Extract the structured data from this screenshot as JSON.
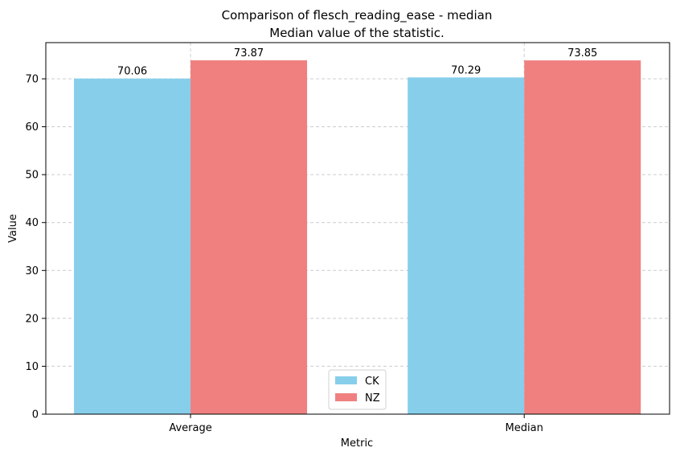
{
  "chart_data": {
    "type": "bar",
    "title": "Comparison of flesch_reading_ease - median",
    "subtitle": "Median value of the statistic.",
    "xlabel": "Metric",
    "ylabel": "Value",
    "categories": [
      "Average",
      "Median"
    ],
    "series": [
      {
        "name": "CK",
        "values": [
          70.06,
          70.29
        ],
        "labels": [
          "70.06",
          "70.29"
        ],
        "color": "#87ceeb"
      },
      {
        "name": "NZ",
        "values": [
          73.87,
          73.85
        ],
        "labels": [
          "73.87",
          "73.85"
        ],
        "color": "#f08080"
      }
    ],
    "ylim": [
      0,
      77.56
    ],
    "yticks": [
      0,
      10,
      20,
      30,
      40,
      50,
      60,
      70
    ],
    "grid": true,
    "legend_position": "bottom-center"
  }
}
